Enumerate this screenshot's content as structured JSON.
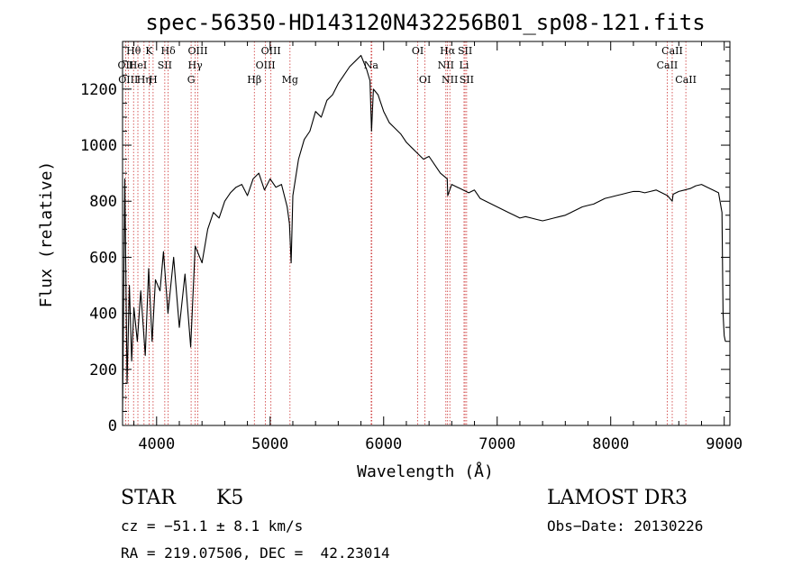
{
  "chart_data": {
    "type": "line",
    "title": "spec-56350-HD143120N432256B01_sp08-121.fits",
    "xlabel": "Wavelength (Å)",
    "ylabel": "Flux (relative)",
    "xlim": [
      3700,
      9050
    ],
    "ylim": [
      0,
      1370
    ],
    "xticks": [
      4000,
      5000,
      6000,
      7000,
      8000,
      9000
    ],
    "yticks": [
      0,
      200,
      400,
      600,
      800,
      1000,
      1200
    ],
    "grid": false,
    "series": [
      {
        "x": [
          3700,
          3720,
          3740,
          3760,
          3780,
          3800,
          3830,
          3860,
          3900,
          3930,
          3960,
          3990,
          4030,
          4060,
          4100,
          4150,
          4200,
          4250,
          4300,
          4340,
          4400,
          4450,
          4500,
          4550,
          4600,
          4650,
          4700,
          4750,
          4800,
          4850,
          4900,
          4950,
          5000,
          5050,
          5100,
          5150,
          5170,
          5185,
          5200,
          5250,
          5300,
          5350,
          5400,
          5450,
          5500,
          5550,
          5600,
          5650,
          5700,
          5750,
          5800,
          5850,
          5880,
          5893,
          5910,
          5950,
          6000,
          6050,
          6100,
          6150,
          6200,
          6250,
          6300,
          6350,
          6400,
          6450,
          6500,
          6560,
          6565,
          6600,
          6650,
          6700,
          6750,
          6800,
          6850,
          6900,
          6950,
          7000,
          7050,
          7100,
          7150,
          7200,
          7250,
          7300,
          7350,
          7400,
          7450,
          7500,
          7550,
          7600,
          7650,
          7700,
          7750,
          7800,
          7850,
          7900,
          7950,
          8000,
          8050,
          8100,
          8150,
          8200,
          8250,
          8300,
          8350,
          8400,
          8450,
          8500,
          8542,
          8550,
          8600,
          8650,
          8700,
          8750,
          8800,
          8850,
          8900,
          8950,
          8980,
          8990,
          9000,
          9010
        ],
        "y": [
          50,
          880,
          150,
          500,
          230,
          420,
          300,
          480,
          250,
          560,
          300,
          520,
          480,
          620,
          400,
          600,
          350,
          540,
          280,
          640,
          580,
          700,
          760,
          740,
          800,
          830,
          850,
          860,
          820,
          880,
          900,
          840,
          880,
          850,
          860,
          780,
          720,
          580,
          820,
          950,
          1020,
          1050,
          1120,
          1100,
          1160,
          1180,
          1220,
          1250,
          1280,
          1300,
          1320,
          1270,
          1230,
          1050,
          1200,
          1180,
          1120,
          1080,
          1060,
          1040,
          1010,
          990,
          970,
          950,
          960,
          930,
          900,
          880,
          820,
          860,
          850,
          840,
          830,
          840,
          810,
          800,
          790,
          780,
          770,
          760,
          750,
          740,
          745,
          740,
          735,
          730,
          735,
          740,
          745,
          750,
          760,
          770,
          780,
          785,
          790,
          800,
          810,
          815,
          820,
          825,
          830,
          835,
          835,
          830,
          835,
          840,
          830,
          820,
          800,
          825,
          835,
          840,
          845,
          855,
          860,
          850,
          840,
          830,
          760,
          400,
          320,
          300
        ]
      }
    ],
    "emission_lines": [
      {
        "x": 3727,
        "label": "OII",
        "row": 1
      },
      {
        "x": 3750,
        "label": "OIII",
        "row": 2
      },
      {
        "x": 3797,
        "label": "Hθ",
        "row": 0
      },
      {
        "x": 3835,
        "label": "HeI",
        "row": 1
      },
      {
        "x": 3889,
        "label": "Hη",
        "row": 2
      },
      {
        "x": 3934,
        "label": "K",
        "row": 0
      },
      {
        "x": 3969,
        "label": "H",
        "row": 2
      },
      {
        "x": 4072,
        "label": "SII",
        "row": 1
      },
      {
        "x": 4102,
        "label": "Hδ",
        "row": 0
      },
      {
        "x": 4304,
        "label": "G",
        "row": 2
      },
      {
        "x": 4340,
        "label": "Hγ",
        "row": 1
      },
      {
        "x": 4363,
        "label": "OIII",
        "row": 0
      },
      {
        "x": 4861,
        "label": "Hβ",
        "row": 2
      },
      {
        "x": 4959,
        "label": "OIII",
        "row": 1
      },
      {
        "x": 5007,
        "label": "OIII",
        "row": 0
      },
      {
        "x": 5175,
        "label": "Mg",
        "row": 2
      },
      {
        "x": 5890,
        "label": "Na",
        "row": 1
      },
      {
        "x": 5896,
        "label": "",
        "row": 2
      },
      {
        "x": 6300,
        "label": "OI",
        "row": 0
      },
      {
        "x": 6364,
        "label": "OI",
        "row": 2
      },
      {
        "x": 6548,
        "label": "NII",
        "row": 1
      },
      {
        "x": 6563,
        "label": "Hα",
        "row": 0
      },
      {
        "x": 6583,
        "label": "NII",
        "row": 2
      },
      {
        "x": 6708,
        "label": "Li",
        "row": 1
      },
      {
        "x": 6717,
        "label": "SII",
        "row": 0
      },
      {
        "x": 6731,
        "label": "SII",
        "row": 2
      },
      {
        "x": 8498,
        "label": "CaII",
        "row": 1
      },
      {
        "x": 8542,
        "label": "CaII",
        "row": 0
      },
      {
        "x": 8662,
        "label": "CaII",
        "row": 2
      }
    ]
  },
  "info": {
    "object_class": "STAR",
    "subclass": "K5",
    "survey": "LAMOST DR3",
    "cz": "cz = −51.1 ± 8.1 km/s",
    "obs_date": "Obs−Date: 20130226",
    "coords": "RA = 219.07506, DEC =  42.23014"
  },
  "colors": {
    "spectrum": "#000000",
    "line_markers": "#cc3333"
  }
}
